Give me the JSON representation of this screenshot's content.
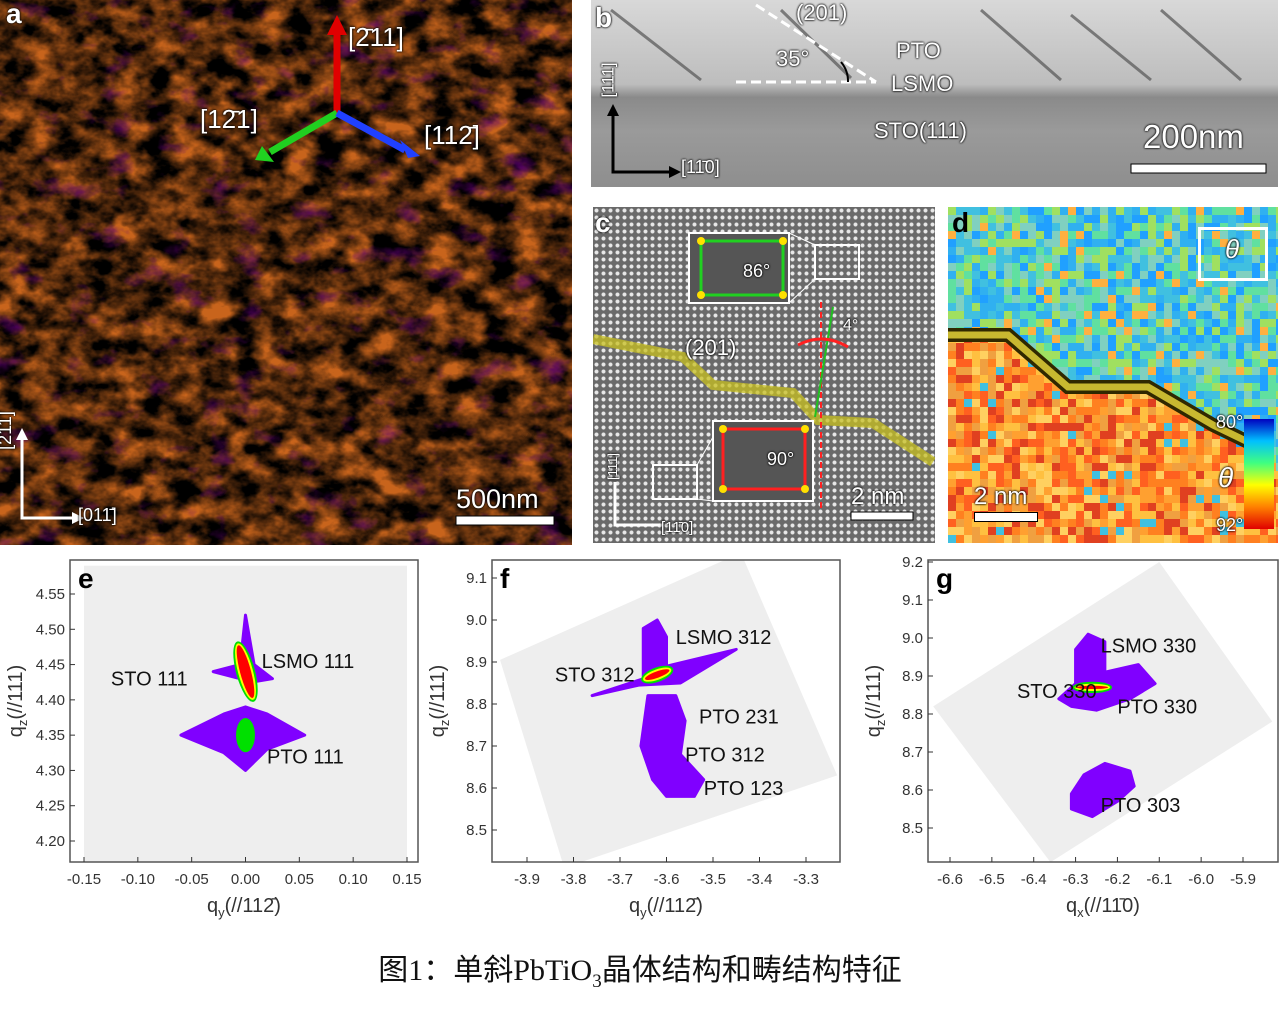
{
  "panel_a": {
    "letter": "a",
    "dir_up": "[2̄11]",
    "dir_left": "[12̄1]",
    "dir_right": "[112̄]",
    "axis_v": "[2̄11]",
    "axis_h": "[011̄]",
    "scalebar": "500nm"
  },
  "panel_b": {
    "letter": "b",
    "plane": "(201)",
    "angle": "35°",
    "layer_top": "PTO",
    "layer_mid": "LSMO",
    "substrate": "STO(111)",
    "axis_v": "[111]",
    "axis_h": "[11̄0]",
    "scalebar": "200nm"
  },
  "panel_c": {
    "letter": "c",
    "inset_top_angle": "86°",
    "plane": "(201)",
    "tilt": "4°",
    "inset_bottom_angle": "90°",
    "axis_v": "[111]",
    "axis_h": "[11̄0]",
    "scalebar": "2 nm"
  },
  "panel_d": {
    "letter": "d",
    "legend_symbol": "θ",
    "colorbar_max": "80°",
    "colorbar_symbol": "θ",
    "colorbar_min": "92°",
    "scalebar": "2 nm"
  },
  "colors": {
    "peak_low": "#8000ff",
    "peak_mid": "#00e000",
    "peak_high": "#ff0000",
    "peak_top": "#ffff00",
    "plot_bg": "#eeeeee"
  },
  "chart_data": [
    {
      "type": "heatmap",
      "letter": "e",
      "xlabel": "q",
      "xlabel_sub": "y",
      "xlabel_rest": "(//112̄)",
      "ylabel": "q",
      "ylabel_sub": "z",
      "ylabel_rest": "(//111)",
      "xlim": [
        -0.16,
        0.16
      ],
      "ylim": [
        4.17,
        4.59
      ],
      "xticks": [
        "-0.15",
        "-0.10",
        "-0.05",
        "0.00",
        "0.05",
        "0.10",
        "0.15"
      ],
      "xtick_values": [
        -0.15,
        -0.1,
        -0.05,
        0.0,
        0.05,
        0.1,
        0.15
      ],
      "yticks": [
        "4.20",
        "4.25",
        "4.30",
        "4.35",
        "4.40",
        "4.45",
        "4.50",
        "4.55"
      ],
      "ytick_values": [
        4.2,
        4.25,
        4.3,
        4.35,
        4.4,
        4.45,
        4.5,
        4.55
      ],
      "background": [
        [
          -0.15,
          4.17
        ],
        [
          -0.15,
          4.59
        ],
        [
          0.15,
          4.59
        ],
        [
          0.15,
          4.17
        ]
      ],
      "peaks": [
        {
          "name": "STO/LSMO 111",
          "x": 0.0,
          "y": 4.44,
          "streak": [
            [
              0.0,
              4.52
            ],
            [
              0.008,
              4.45
            ],
            [
              0.025,
              4.43
            ],
            [
              0.005,
              4.425
            ],
            [
              0.005,
              4.4
            ],
            [
              -0.005,
              4.43
            ],
            [
              -0.03,
              4.44
            ],
            [
              -0.005,
              4.45
            ]
          ],
          "core": {
            "rx": 0.006,
            "ry": 0.04,
            "rot": -15
          }
        },
        {
          "name": "PTO 111",
          "x": 0.0,
          "y": 4.35,
          "streak": [
            [
              -0.06,
              4.35
            ],
            [
              -0.02,
              4.38
            ],
            [
              0.0,
              4.39
            ],
            [
              0.02,
              4.38
            ],
            [
              0.055,
              4.35
            ],
            [
              0.02,
              4.33
            ],
            [
              0.0,
              4.3
            ],
            [
              -0.02,
              4.325
            ]
          ],
          "core": {
            "rx": 0.006,
            "ry": 0.02,
            "rot": 0,
            "green_only": true
          }
        }
      ],
      "annotations": [
        {
          "text": "STO 111",
          "x": -0.125,
          "y": 4.43
        },
        {
          "text": "LSMO 111",
          "x": 0.015,
          "y": 4.455
        },
        {
          "text": "PTO 111",
          "x": 0.02,
          "y": 4.32
        }
      ]
    },
    {
      "type": "heatmap",
      "letter": "f",
      "xlabel": "q",
      "xlabel_sub": "y",
      "xlabel_rest": "(//112̄)",
      "ylabel": "q",
      "ylabel_sub": "z",
      "ylabel_rest": "(//111)",
      "xlim": [
        -3.975,
        -3.225
      ],
      "ylim": [
        8.42,
        9.14
      ],
      "xticks": [
        "-3.9",
        "-3.8",
        "-3.7",
        "-3.6",
        "-3.5",
        "-3.4",
        "-3.3"
      ],
      "xtick_values": [
        -3.9,
        -3.8,
        -3.7,
        -3.6,
        -3.5,
        -3.4,
        -3.3
      ],
      "yticks": [
        "8.5",
        "8.6",
        "8.7",
        "8.8",
        "8.9",
        "9.0",
        "9.1"
      ],
      "ytick_values": [
        8.5,
        8.6,
        8.7,
        8.8,
        8.9,
        9.0,
        9.1
      ],
      "background": [
        [
          -3.958,
          8.905
        ],
        [
          -3.44,
          9.16
        ],
        [
          -3.233,
          8.63
        ],
        [
          -3.82,
          8.41
        ]
      ],
      "peaks": [
        {
          "name": "STO/LSMO 312",
          "x": -3.62,
          "y": 8.87,
          "streak": [
            [
              -3.76,
              8.82
            ],
            [
              -3.65,
              8.86
            ],
            [
              -3.65,
              8.98
            ],
            [
              -3.62,
              9.0
            ],
            [
              -3.6,
              8.96
            ],
            [
              -3.6,
              8.89
            ],
            [
              -3.45,
              8.93
            ],
            [
              -3.57,
              8.85
            ],
            [
              -3.66,
              8.845
            ]
          ],
          "core": {
            "rx": 0.03,
            "ry": 0.01,
            "rot": -20
          }
        },
        {
          "name": "PTO",
          "x": -3.6,
          "y": 8.7,
          "streak": [
            [
              -3.64,
              8.82
            ],
            [
              -3.58,
              8.82
            ],
            [
              -3.56,
              8.76
            ],
            [
              -3.57,
              8.68
            ],
            [
              -3.52,
              8.62
            ],
            [
              -3.54,
              8.58
            ],
            [
              -3.6,
              8.58
            ],
            [
              -3.63,
              8.62
            ],
            [
              -3.655,
              8.7
            ]
          ],
          "core": null
        }
      ],
      "annotations": [
        {
          "text": "LSMO 312",
          "x": -3.58,
          "y": 8.96
        },
        {
          "text": "STO 312",
          "x": -3.84,
          "y": 8.87
        },
        {
          "text": "PTO 231",
          "x": -3.53,
          "y": 8.77
        },
        {
          "text": "PTO 312",
          "x": -3.56,
          "y": 8.68
        },
        {
          "text": "PTO 123",
          "x": -3.52,
          "y": 8.6
        }
      ]
    },
    {
      "type": "heatmap",
      "letter": "g",
      "xlabel": "q",
      "xlabel_sub": "x",
      "xlabel_rest": "(//11̄0)",
      "ylabel": "q",
      "ylabel_sub": "z",
      "ylabel_rest": "(//111)",
      "xlim": [
        -6.65,
        -5.82
      ],
      "ylim": [
        8.4,
        9.2
      ],
      "xticks": [
        "-6.6",
        "-6.5",
        "-6.4",
        "-6.3",
        "-6.2",
        "-6.1",
        "-6.0",
        "-5.9"
      ],
      "xtick_values": [
        -6.6,
        -6.5,
        -6.4,
        -6.3,
        -6.2,
        -6.1,
        -6.0,
        -5.9
      ],
      "yticks": [
        "8.5",
        "8.6",
        "8.7",
        "8.8",
        "8.9",
        "9.0",
        "9.1",
        "9.2"
      ],
      "ytick_values": [
        8.5,
        8.6,
        8.7,
        8.8,
        8.9,
        9.0,
        9.1,
        9.2
      ],
      "background": [
        [
          -6.64,
          8.82
        ],
        [
          -6.1,
          9.2
        ],
        [
          -5.83,
          8.78
        ],
        [
          -6.36,
          8.41
        ]
      ],
      "peaks": [
        {
          "name": "STO/LSMO/PTO 330",
          "x": -6.26,
          "y": 8.87,
          "streak": [
            [
              -6.34,
              8.84
            ],
            [
              -6.3,
              8.88
            ],
            [
              -6.3,
              8.97
            ],
            [
              -6.27,
              9.01
            ],
            [
              -6.23,
              8.99
            ],
            [
              -6.23,
              8.91
            ],
            [
              -6.15,
              8.93
            ],
            [
              -6.11,
              8.88
            ],
            [
              -6.17,
              8.84
            ],
            [
              -6.25,
              8.81
            ],
            [
              -6.31,
              8.82
            ]
          ],
          "core": {
            "rx": 0.04,
            "ry": 0.007,
            "rot": 0
          }
        },
        {
          "name": "PTO 303",
          "x": -6.25,
          "y": 8.6,
          "streak": [
            [
              -6.31,
              8.59
            ],
            [
              -6.28,
              8.64
            ],
            [
              -6.23,
              8.67
            ],
            [
              -6.17,
              8.65
            ],
            [
              -6.16,
              8.61
            ],
            [
              -6.2,
              8.57
            ],
            [
              -6.26,
              8.53
            ],
            [
              -6.31,
              8.55
            ]
          ],
          "core": null
        }
      ],
      "annotations": [
        {
          "text": "LSMO 330",
          "x": -6.24,
          "y": 8.98
        },
        {
          "text": "STO 330",
          "x": -6.44,
          "y": 8.86
        },
        {
          "text": "PTO 330",
          "x": -6.2,
          "y": 8.82
        },
        {
          "text": "PTO 303",
          "x": -6.24,
          "y": 8.56
        }
      ]
    }
  ],
  "caption": {
    "prefix": "图1：单斜PbTiO",
    "sub": "3",
    "suffix": "晶体结构和畴结构特征"
  }
}
